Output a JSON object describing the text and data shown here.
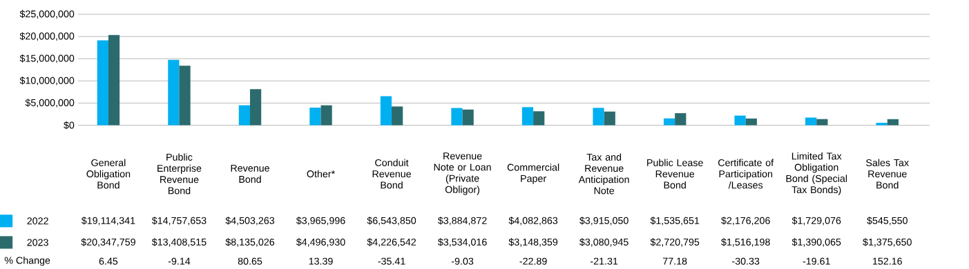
{
  "chart_data": {
    "type": "bar",
    "categories": [
      "General Obligation Bond",
      "Public Enterprise Revenue Bond",
      "Revenue Bond",
      "Other*",
      "Conduit Revenue Bond",
      "Revenue Note or Loan (Private Obligor)",
      "Commercial Paper",
      "Tax and Revenue Anticipation Note",
      "Public Lease Revenue Bond",
      "Certificate of Participation /Leases",
      "Limited Tax Obligation Bond (Special Tax Bonds)",
      "Sales Tax Revenue Bond"
    ],
    "series": [
      {
        "name": "2022",
        "color": "#00b0f0",
        "values": [
          19114341,
          14757653,
          4503263,
          3965996,
          6543850,
          3884872,
          4082863,
          3915050,
          1535651,
          2176206,
          1729076,
          545550
        ],
        "value_labels": [
          "$19,114,341",
          "$14,757,653",
          "$4,503,263",
          "$3,965,996",
          "$6,543,850",
          "$3,884,872",
          "$4,082,863",
          "$3,915,050",
          "$1,535,651",
          "$2,176,206",
          "$1,729,076",
          "$545,550"
        ]
      },
      {
        "name": "2023",
        "color": "#2c6b6d",
        "values": [
          20347759,
          13408515,
          8135026,
          4496930,
          4226542,
          3534016,
          3148359,
          3080945,
          2720795,
          1516198,
          1390065,
          1375650
        ],
        "value_labels": [
          "$20,347,759",
          "$13,408,515",
          "$8,135,026",
          "$4,496,930",
          "$4,226,542",
          "$3,534,016",
          "$3,148,359",
          "$3,080,945",
          "$2,720,795",
          "$1,516,198",
          "$1,390,065",
          "$1,375,650"
        ]
      }
    ],
    "annotations": [
      "% Change",
      "6.45",
      "-9.14",
      "80.65",
      "13.39",
      "-35.41",
      "-9.03",
      "-22.89",
      "-21.31",
      "77.18",
      "-30.33",
      "-19.61",
      "152.16"
    ],
    "ylim": [
      0,
      25000000
    ],
    "yticks": [
      {
        "value": 0,
        "label": "$0"
      },
      {
        "value": 5000000,
        "label": "$5,000,000"
      },
      {
        "value": 10000000,
        "label": "$10,000,000"
      },
      {
        "value": 15000000,
        "label": "$15,000,000"
      },
      {
        "value": 20000000,
        "label": "$20,000,000"
      },
      {
        "value": 25000000,
        "label": "$25,000,000"
      }
    ],
    "grid": "y",
    "legend": "bottom"
  }
}
